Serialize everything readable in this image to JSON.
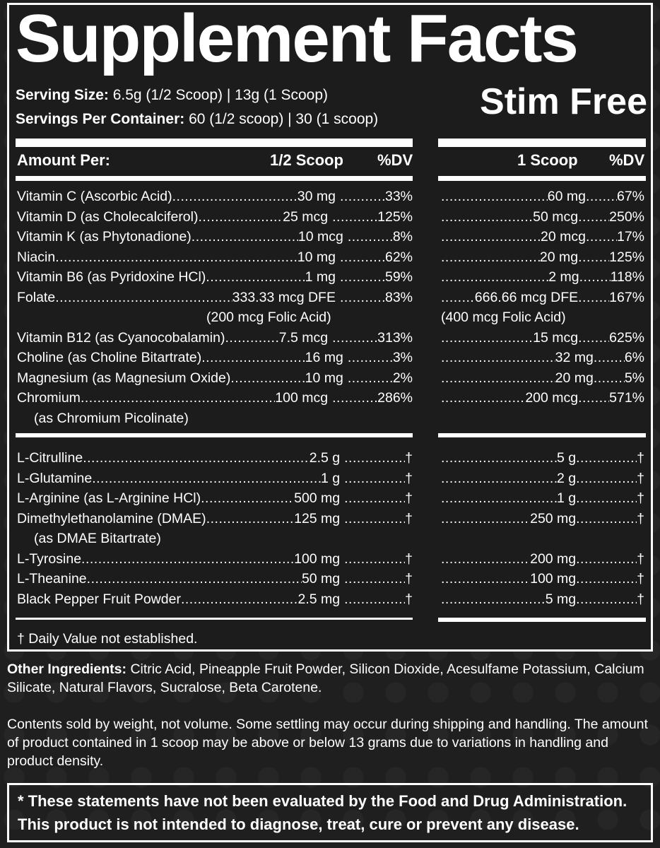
{
  "header": {
    "title": "Supplement Facts",
    "variant": "Stim Free",
    "serving_size_label": "Serving Size:",
    "serving_size_value": " 6.5g (1/2 Scoop)  |  13g (1 Scoop)",
    "servings_per_container_label": "Servings Per Container:",
    "servings_per_container_value": " 60 (1/2 scoop)  |  30 (1 scoop)"
  },
  "columns": {
    "amount_per": "Amount Per:",
    "half_scoop": "1/2 Scoop",
    "dv_left": "%DV",
    "one_scoop": "1 Scoop",
    "dv_right": "%DV"
  },
  "vitamins": [
    {
      "name": "Vitamin C (Ascorbic Acid)",
      "half": "30 mg",
      "half_dv": "33%",
      "full": "60 mg",
      "full_dv": "67%"
    },
    {
      "name": "Vitamin D (as Cholecalciferol)",
      "half": "25 mcg",
      "half_dv": "125%",
      "full": "50 mcg",
      "full_dv": "250%"
    },
    {
      "name": "Vitamin K (as Phytonadione)",
      "half": "10 mcg",
      "half_dv": "8%",
      "full": "20 mcg",
      "full_dv": "17%"
    },
    {
      "name": "Niacin",
      "half": "10 mg",
      "half_dv": "62%",
      "full": "20 mg",
      "full_dv": "125%"
    },
    {
      "name": "Vitamin B6 (as Pyridoxine HCl)",
      "half": "1 mg",
      "half_dv": "59%",
      "full": "2 mg",
      "full_dv": "118%"
    },
    {
      "name": "Folate",
      "half": "333.33 mcg DFE",
      "half_dv": "83%",
      "full": "666.66 mcg DFE",
      "full_dv": "167%",
      "half_note": "(200 mcg Folic Acid)",
      "full_note": "(400 mcg Folic Acid)"
    },
    {
      "name": "Vitamin B12 (as Cyanocobalamin)",
      "half": "7.5 mcg",
      "half_dv": "313%",
      "full": "15 mcg",
      "full_dv": "625%"
    },
    {
      "name": "Choline (as Choline Bitartrate)",
      "half": "16 mg",
      "half_dv": "3%",
      "full": "32 mg",
      "full_dv": "6%"
    },
    {
      "name": "Magnesium (as Magnesium Oxide)",
      "half": "10 mg",
      "half_dv": "2%",
      "full": "20 mg",
      "full_dv": "5%"
    },
    {
      "name": "Chromium",
      "half": "100 mcg",
      "half_dv": "286%",
      "full": "200 mcg",
      "full_dv": "571%",
      "name_note": "(as Chromium Picolinate)"
    }
  ],
  "ingredients": [
    {
      "name": "L-Citrulline",
      "half": "2.5 g",
      "half_dv": "†",
      "full": "5 g",
      "full_dv": "†"
    },
    {
      "name": "L-Glutamine",
      "half": "1 g",
      "half_dv": "†",
      "full": "2 g",
      "full_dv": "†"
    },
    {
      "name": "L-Arginine (as L-Arginine HCl)",
      "half": "500 mg",
      "half_dv": "†",
      "full": "1 g",
      "full_dv": "†"
    },
    {
      "name": "Dimethylethanolamine (DMAE)",
      "half": "125 mg",
      "half_dv": "†",
      "full": "250 mg",
      "full_dv": "†",
      "name_note": "(as DMAE Bitartrate)"
    },
    {
      "name": "L-Tyrosine",
      "half": "100 mg",
      "half_dv": "†",
      "full": "200 mg",
      "full_dv": "†"
    },
    {
      "name": "L-Theanine",
      "half": "50 mg",
      "half_dv": "†",
      "full": "100 mg",
      "full_dv": "†"
    },
    {
      "name": "Black Pepper Fruit Powder",
      "half": "2.5 mg",
      "half_dv": "†",
      "full": "5 mg",
      "full_dv": "†"
    }
  ],
  "footnote": "† Daily Value not established.",
  "other_ingredients_label": "Other Ingredients:",
  "other_ingredients_text": " Citric Acid, Pineapple Fruit Powder, Silicon Dioxide, Acesulfame Potassium, Calcium Silicate, Natural Flavors, Sucralose, Beta Carotene.",
  "contents_note": "Contents sold by weight, not volume. Some settling may occur during shipping and handling. The amount of product contained in 1 scoop may be above or below 13 grams due to variations in handling and product density.",
  "fda_line1": "* These statements have not been evaluated by the Food and Drug Administration.",
  "fda_line2": "This product is not intended to diagnose, treat, cure or prevent any disease."
}
